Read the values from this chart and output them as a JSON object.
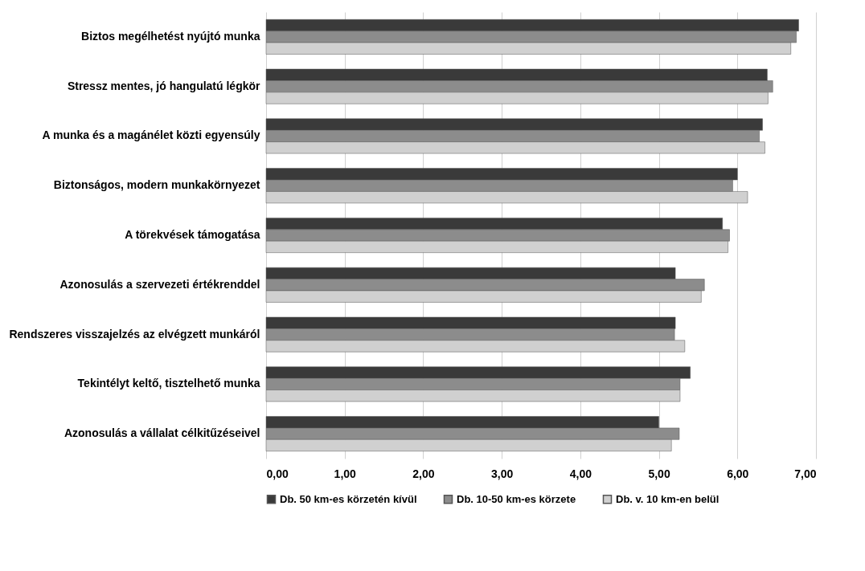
{
  "chart_data": {
    "type": "bar",
    "orientation": "horizontal",
    "categories": [
      "Biztos megélhetést nyújtó munka",
      "Stressz mentes, jó hangulatú légkör",
      "A munka és a magánélet közti egyensúly",
      "Biztonságos, modern munkakörnyezet",
      "A törekvések támogatása",
      "Azonosulás a szervezeti értékrenddel",
      "Rendszeres visszajelzés az elvégzett munkáról",
      "Tekintélyt keltő, tisztelhető munka",
      "Azonosulás a vállalat célkitűzéseivel"
    ],
    "series": [
      {
        "name": "Db. 50 km-es körzetén kívül",
        "color": "#3a3a3a",
        "values": [
          6.78,
          6.38,
          6.32,
          6.0,
          5.81,
          5.21,
          5.21,
          5.4,
          5.0
        ]
      },
      {
        "name": "Db. 10-50 km-es körzete",
        "color": "#8c8c8c",
        "values": [
          6.75,
          6.45,
          6.28,
          5.94,
          5.9,
          5.58,
          5.2,
          5.27,
          5.26
        ]
      },
      {
        "name": "Db. v. 10 km-en belül",
        "color": "#d0d0d0",
        "values": [
          6.68,
          6.39,
          6.35,
          6.13,
          5.88,
          5.54,
          5.33,
          5.27,
          5.16
        ]
      }
    ],
    "xlim": [
      0,
      7
    ],
    "xticks": [
      {
        "value": 0,
        "label": "0,00"
      },
      {
        "value": 1,
        "label": "1,00"
      },
      {
        "value": 2,
        "label": "2,00"
      },
      {
        "value": 3,
        "label": "3,00"
      },
      {
        "value": 4,
        "label": "4,00"
      },
      {
        "value": 5,
        "label": "5,00"
      },
      {
        "value": 6,
        "label": "6,00"
      },
      {
        "value": 7,
        "label": "7,00"
      }
    ],
    "grid": "x",
    "legend": "bottom"
  }
}
